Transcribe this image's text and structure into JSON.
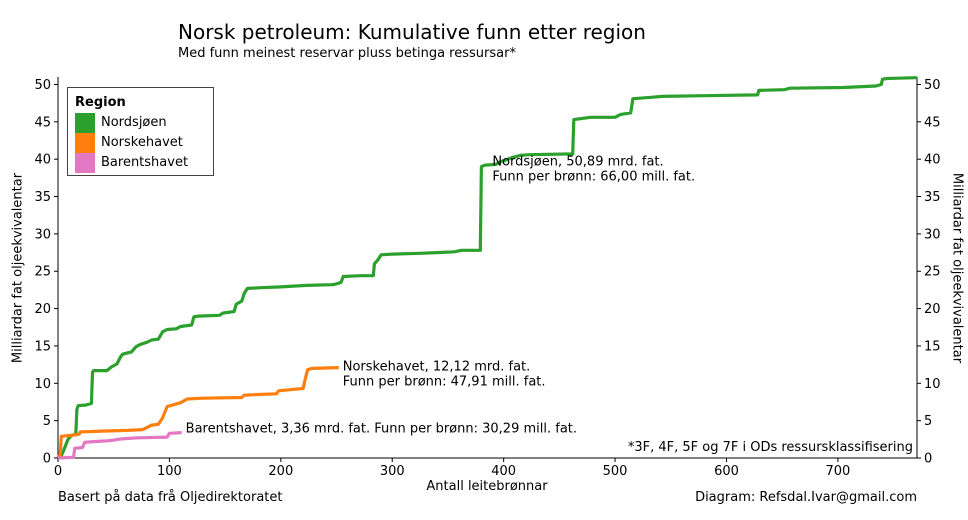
{
  "header": {
    "title": "Norsk petroleum: Kumulative funn etter region",
    "subtitle": "Med funn meinest reservar pluss betinga ressursar*"
  },
  "footer": {
    "source": "Basert på data frå Oljedirektoratet",
    "credit": "Diagram: Refsdal.Ivar@gmail.com",
    "footnote": "*3F, 4F, 5F og 7F i ODs ressursklassifisering"
  },
  "legend": {
    "title": "Region",
    "items": [
      {
        "label": "Nordsjøen",
        "color": "#2ca02c"
      },
      {
        "label": "Norskehavet",
        "color": "#ff7f0e"
      },
      {
        "label": "Barentshavet",
        "color": "#e377c2"
      }
    ],
    "position": "top-left"
  },
  "chart_data": {
    "type": "line",
    "title": "Norsk petroleum: Kumulative funn etter region",
    "subtitle": "Med funn meinest reservar pluss betinga ressursar*",
    "xlabel": "Antall leitebrønnar",
    "ylabel": "Milliardar fat oljeekvivalentar",
    "ylabel_right": "Milliardar fat oljeekvivalentar",
    "xlim": [
      0,
      771
    ],
    "ylim": [
      0,
      51
    ],
    "x_ticks": [
      0,
      100,
      200,
      300,
      400,
      500,
      600,
      700
    ],
    "x_tick_labels": [
      "0",
      "100",
      "200",
      "300",
      "400",
      "500",
      "600",
      "700"
    ],
    "y_ticks": [
      0,
      5,
      10,
      15,
      20,
      25,
      30,
      35,
      40,
      45,
      50
    ],
    "y_tick_labels": [
      "0",
      "5",
      "10",
      "15",
      "20",
      "25",
      "30",
      "35",
      "40",
      "45",
      "50"
    ],
    "grid": false,
    "series": [
      {
        "name": "Nordsjøen",
        "color": "#2ca02c",
        "annotation": [
          "Nordsjøen, 50,89 mrd. fat.",
          "Funn per brønn: 66,00 mill. fat."
        ],
        "points": [
          [
            0,
            0
          ],
          [
            3,
            0.3
          ],
          [
            5,
            1.0
          ],
          [
            9,
            2.5
          ],
          [
            12,
            3.0
          ],
          [
            16,
            3.2
          ],
          [
            17,
            6.5
          ],
          [
            18,
            7.0
          ],
          [
            25,
            7.1
          ],
          [
            30,
            7.3
          ],
          [
            31,
            11.5
          ],
          [
            32,
            11.7
          ],
          [
            44,
            11.7
          ],
          [
            48,
            12.2
          ],
          [
            53,
            12.6
          ],
          [
            56,
            13.5
          ],
          [
            58,
            13.9
          ],
          [
            66,
            14.2
          ],
          [
            70,
            14.9
          ],
          [
            74,
            15.2
          ],
          [
            80,
            15.5
          ],
          [
            84,
            15.8
          ],
          [
            90,
            15.9
          ],
          [
            94,
            16.9
          ],
          [
            98,
            17.2
          ],
          [
            106,
            17.3
          ],
          [
            110,
            17.6
          ],
          [
            120,
            17.8
          ],
          [
            122,
            18.9
          ],
          [
            126,
            19.0
          ],
          [
            145,
            19.1
          ],
          [
            148,
            19.4
          ],
          [
            158,
            19.6
          ],
          [
            160,
            20.6
          ],
          [
            165,
            21.0
          ],
          [
            167,
            22.0
          ],
          [
            170,
            22.7
          ],
          [
            182,
            22.8
          ],
          [
            200,
            22.9
          ],
          [
            223,
            23.1
          ],
          [
            246,
            23.2
          ],
          [
            250,
            23.3
          ],
          [
            254,
            23.5
          ],
          [
            256,
            24.3
          ],
          [
            272,
            24.4
          ],
          [
            283,
            24.4
          ],
          [
            284,
            26.0
          ],
          [
            287,
            26.5
          ],
          [
            290,
            27.2
          ],
          [
            300,
            27.3
          ],
          [
            325,
            27.4
          ],
          [
            340,
            27.5
          ],
          [
            356,
            27.6
          ],
          [
            362,
            27.8
          ],
          [
            379,
            27.8
          ],
          [
            380,
            39.0
          ],
          [
            383,
            39.2
          ],
          [
            393,
            39.3
          ],
          [
            396,
            39.6
          ],
          [
            400,
            39.8
          ],
          [
            407,
            40.2
          ],
          [
            415,
            40.5
          ],
          [
            423,
            40.6
          ],
          [
            462,
            40.7
          ],
          [
            463,
            45.3
          ],
          [
            468,
            45.4
          ],
          [
            478,
            45.6
          ],
          [
            500,
            45.6
          ],
          [
            505,
            46.0
          ],
          [
            514,
            46.2
          ],
          [
            516,
            48.1
          ],
          [
            534,
            48.3
          ],
          [
            542,
            48.4
          ],
          [
            580,
            48.5
          ],
          [
            628,
            48.6
          ],
          [
            629,
            49.2
          ],
          [
            652,
            49.3
          ],
          [
            657,
            49.5
          ],
          [
            705,
            49.6
          ],
          [
            734,
            49.8
          ],
          [
            739,
            50.0
          ],
          [
            740,
            50.7
          ],
          [
            744,
            50.8
          ],
          [
            771,
            50.9
          ]
        ]
      },
      {
        "name": "Norskehavet",
        "color": "#ff7f0e",
        "annotation": [
          "Norskehavet, 12,12 mrd. fat.",
          "Funn per brønn: 47,91 mill. fat."
        ],
        "points": [
          [
            0,
            0
          ],
          [
            2,
            0.5
          ],
          [
            3,
            2.9
          ],
          [
            9,
            3.0
          ],
          [
            16,
            3.1
          ],
          [
            19,
            3.2
          ],
          [
            20,
            3.5
          ],
          [
            40,
            3.6
          ],
          [
            62,
            3.7
          ],
          [
            76,
            3.8
          ],
          [
            80,
            4.1
          ],
          [
            84,
            4.4
          ],
          [
            90,
            4.5
          ],
          [
            94,
            5.4
          ],
          [
            96,
            6.2
          ],
          [
            98,
            6.9
          ],
          [
            103,
            7.1
          ],
          [
            110,
            7.4
          ],
          [
            116,
            7.9
          ],
          [
            130,
            8.0
          ],
          [
            165,
            8.1
          ],
          [
            167,
            8.4
          ],
          [
            180,
            8.5
          ],
          [
            196,
            8.6
          ],
          [
            198,
            9.0
          ],
          [
            212,
            9.2
          ],
          [
            220,
            9.3
          ],
          [
            222,
            10.6
          ],
          [
            224,
            11.8
          ],
          [
            228,
            12.0
          ],
          [
            252,
            12.1
          ]
        ]
      },
      {
        "name": "Barentshavet",
        "color": "#e377c2",
        "annotation": [
          "Barentshavet, 3,36 mrd. fat. Funn per brønn: 30,29 mill. fat."
        ],
        "points": [
          [
            0,
            0
          ],
          [
            14,
            0.1
          ],
          [
            15,
            1.3
          ],
          [
            22,
            1.4
          ],
          [
            24,
            2.1
          ],
          [
            32,
            2.2
          ],
          [
            44,
            2.3
          ],
          [
            50,
            2.4
          ],
          [
            54,
            2.5
          ],
          [
            60,
            2.6
          ],
          [
            72,
            2.7
          ],
          [
            98,
            2.8
          ],
          [
            100,
            3.3
          ],
          [
            111,
            3.4
          ]
        ]
      }
    ]
  }
}
